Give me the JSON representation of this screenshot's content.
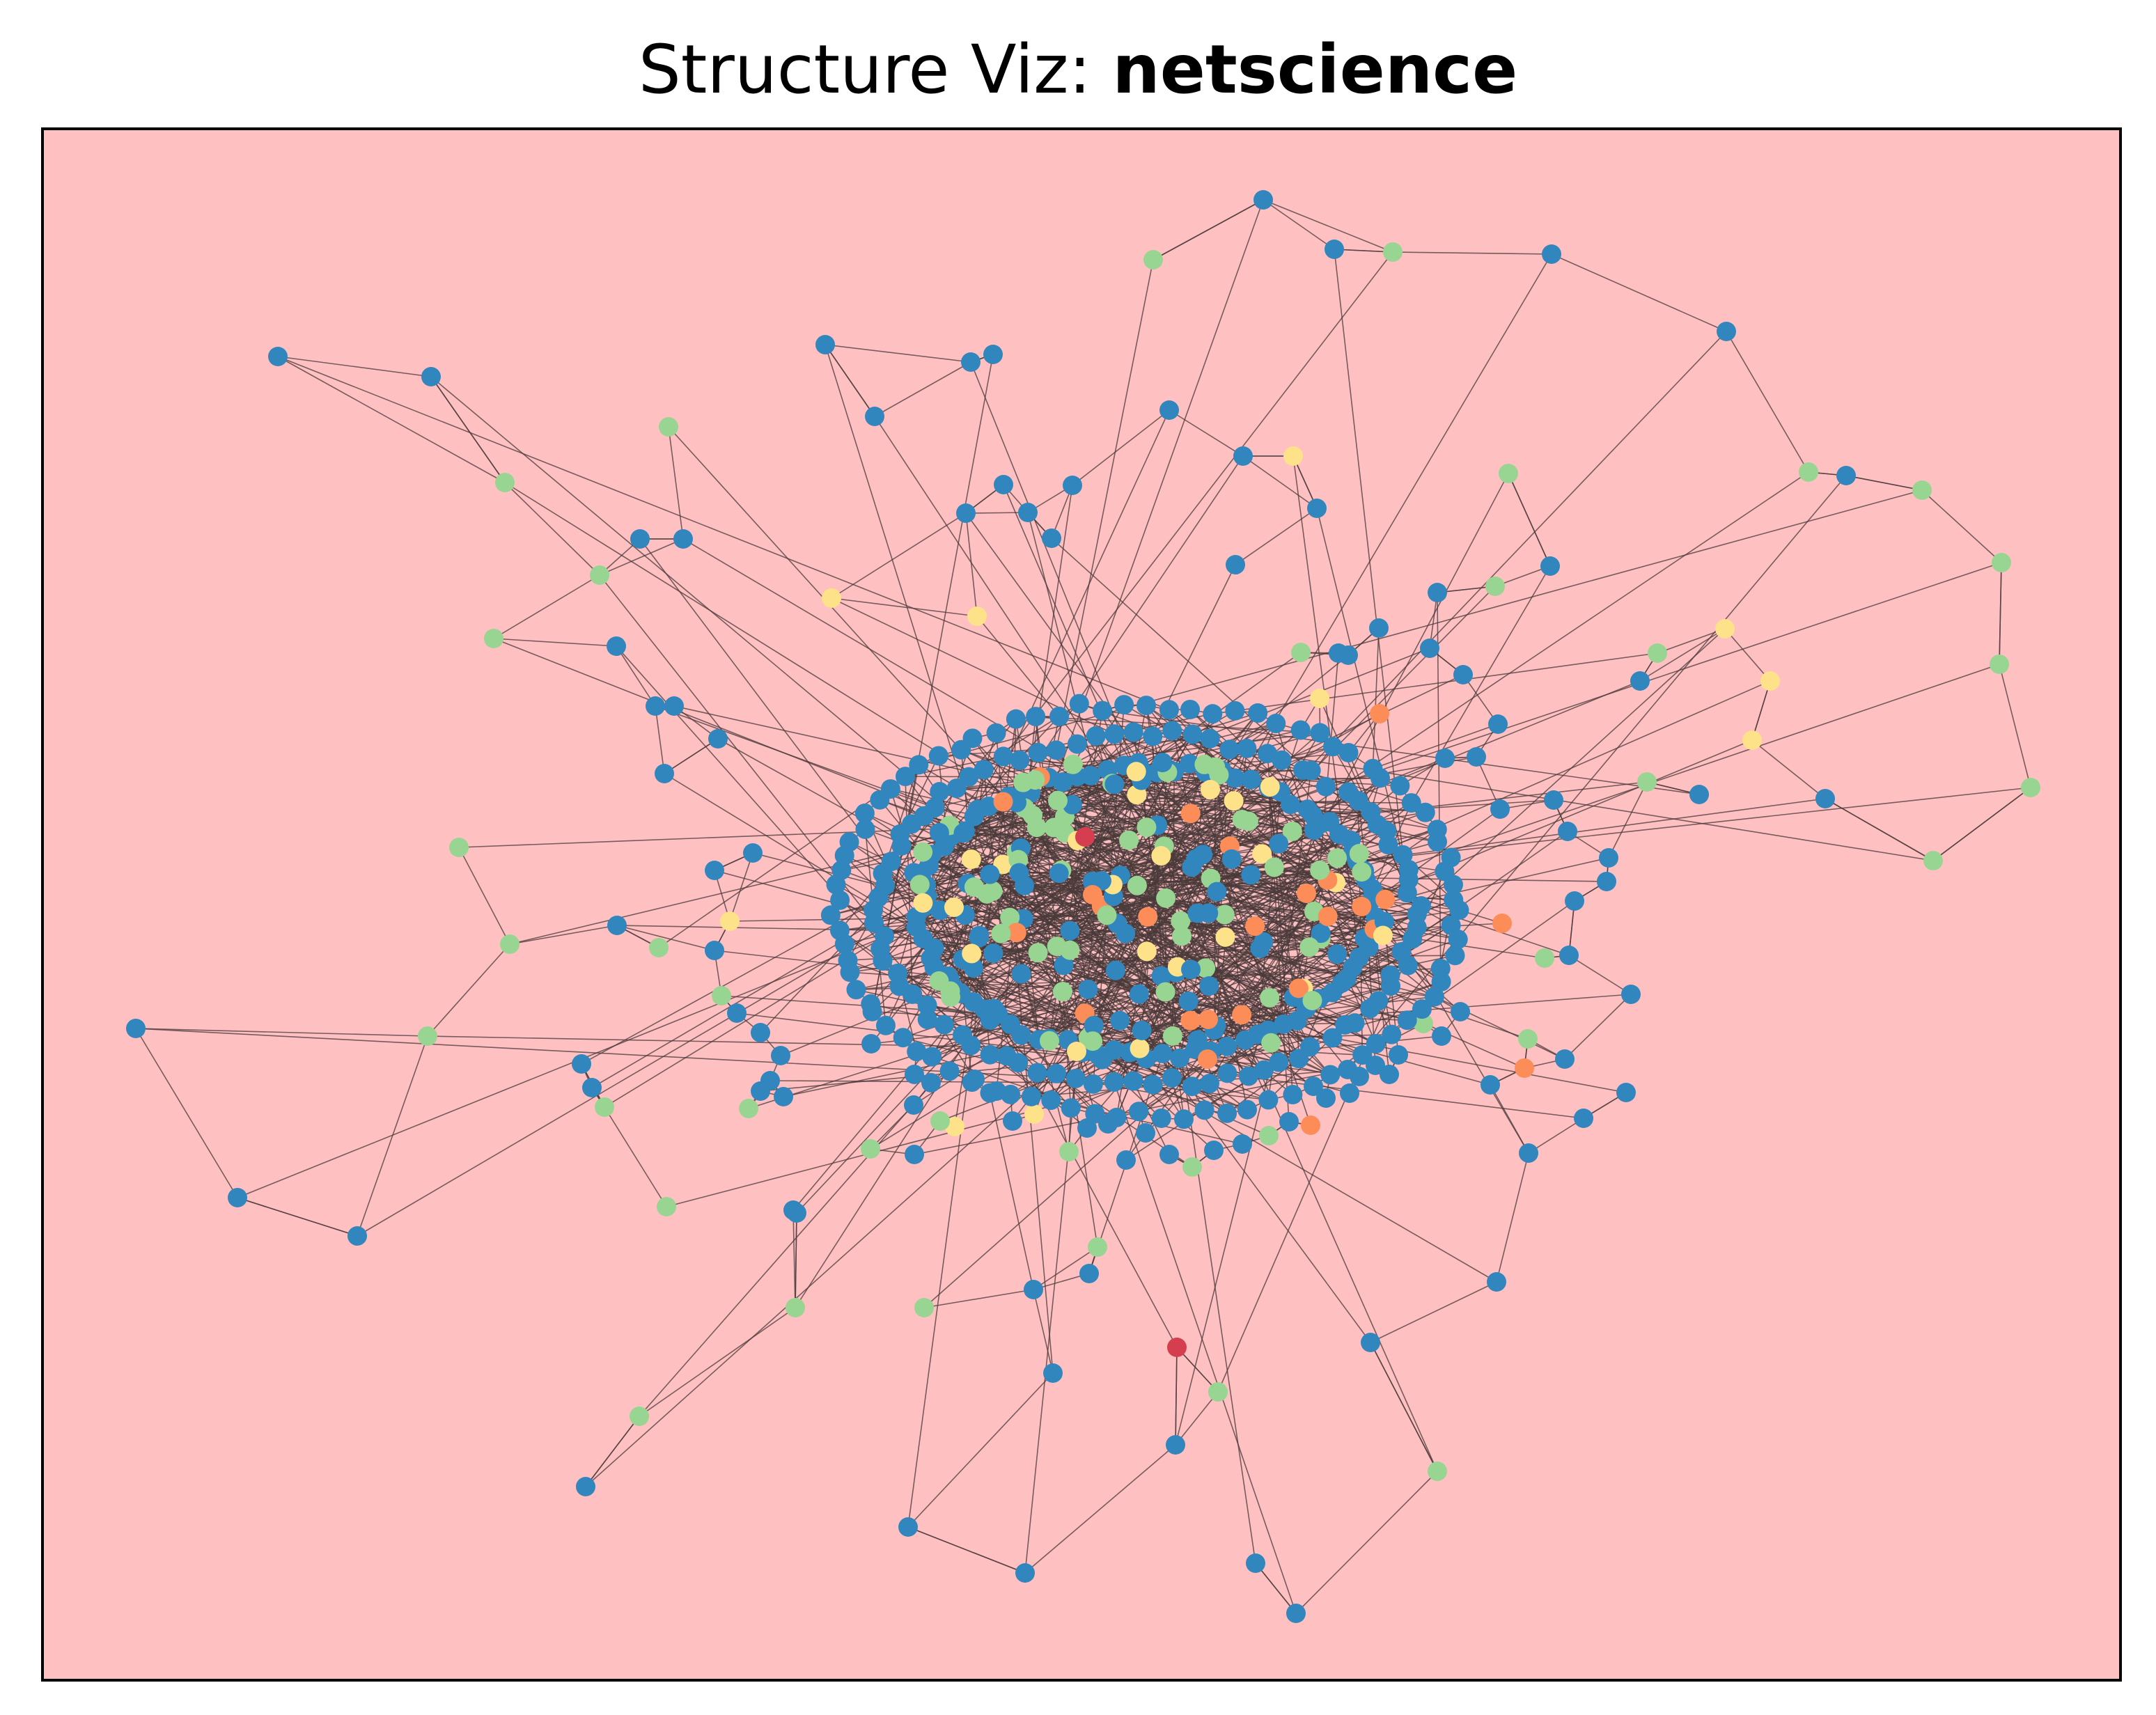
{
  "title": {
    "prefix": "Structure Viz: ",
    "name": "netscience"
  },
  "colors": {
    "background": "#ffc0c2",
    "frame": "#000000",
    "edge": "#4a3a3a",
    "node_blue": "#3186bd",
    "node_green": "#98d593",
    "node_yellow": "#fde28a",
    "node_orange": "#fc8d59",
    "node_red": "#d53e4f"
  },
  "chart_data": {
    "type": "network",
    "graph": "netscience",
    "node_color_classes": [
      "blue",
      "green",
      "yellow",
      "orange",
      "red"
    ]
  }
}
